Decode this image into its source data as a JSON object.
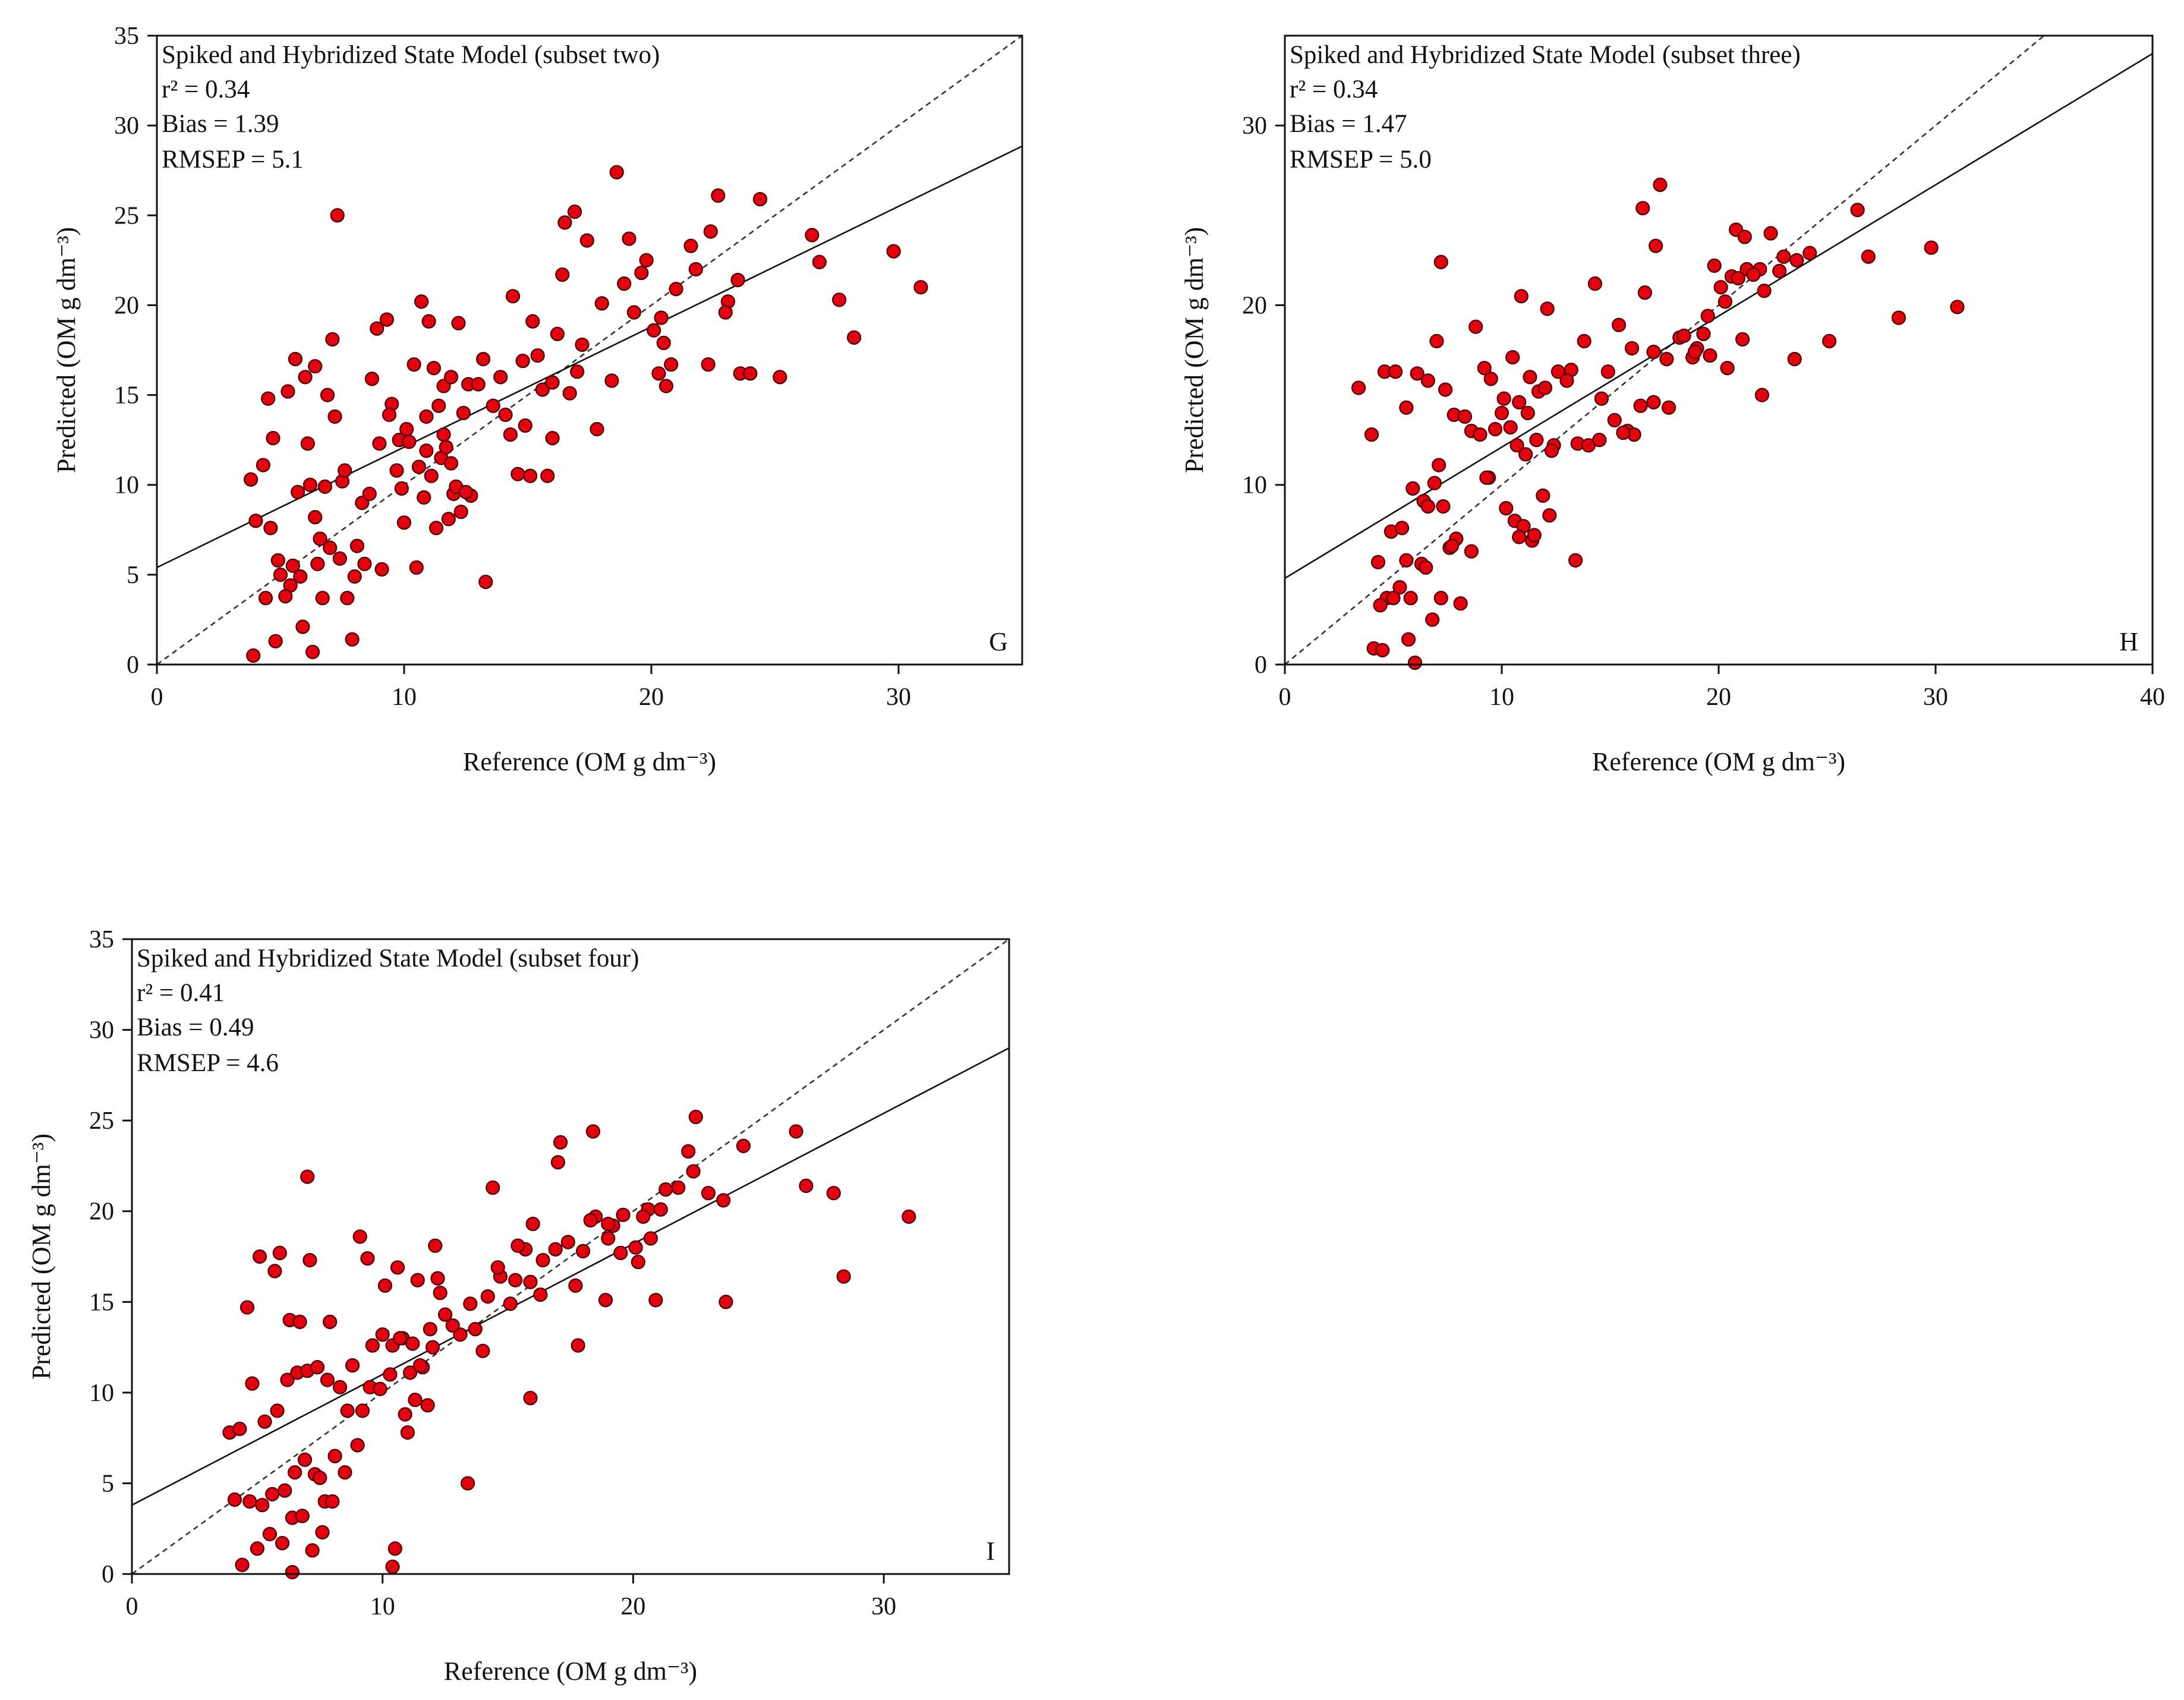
{
  "figure": {
    "colors": {
      "point_fill": "#e3000f",
      "point_stroke": "#4a0000",
      "axes": "#111111",
      "fit_line": "#111111",
      "identity_line": "#333333"
    }
  },
  "chart_data": [
    {
      "type": "scatter",
      "panel": "G",
      "title": "Spiked and Hybridized State Model (subset two)",
      "stats": {
        "r2": "r² = 0.34",
        "bias": "Bias = 1.39",
        "rmsep": "RMSEP = 5.1"
      },
      "xlabel": "Reference (OM g dm⁻³)",
      "ylabel": "Predicted (OM g dm⁻³)",
      "xlim": [
        0,
        35
      ],
      "ylim": [
        0,
        35
      ],
      "xticks": [
        0,
        10,
        20,
        30
      ],
      "yticks": [
        0,
        5,
        10,
        15,
        20,
        25,
        30,
        35
      ],
      "fit_line": {
        "intercept": 5.4,
        "slope": 0.67
      },
      "identity_line": true,
      "x": [
        3.8,
        4.3,
        6.2,
        4.5,
        5.3,
        7.2,
        5.6,
        6.0,
        4.7,
        6.4,
        6.9,
        7.5,
        4.0,
        4.6,
        5.7,
        6.1,
        7.6,
        8.3,
        8.7,
        8.9,
        9.3,
        9.5,
        9.8,
        10.1,
        10.4,
        10.7,
        11.0,
        11.2,
        11.4,
        11.6,
        11.9,
        12.2,
        12.6,
        13.2,
        13.9,
        14.4,
        14.8,
        15.2,
        15.6,
        16.2,
        16.5,
        16.9,
        17.4,
        18.0,
        18.6,
        19.1,
        19.6,
        20.1,
        20.5,
        21.0,
        21.6,
        22.4,
        22.7,
        23.1,
        23.5,
        24.4,
        26.5,
        26.8,
        27.6,
        28.2,
        29.8,
        30.9,
        5.0,
        5.4,
        6.6,
        7.0,
        7.4,
        8.0,
        8.4,
        9.0,
        9.7,
        10.2,
        10.6,
        10.9,
        11.1,
        11.5,
        11.8,
        12.3,
        12.7,
        13.6,
        14.1,
        14.6,
        15.1,
        16.0,
        16.7,
        17.8,
        18.4,
        19.3,
        20.3,
        20.8,
        22.3,
        23.6,
        25.2,
        4.8,
        5.9,
        6.7,
        7.7,
        8.1,
        9.1,
        10.5,
        11.3,
        12.0,
        13.3,
        14.3,
        15.8,
        17.2,
        19.8,
        20.6,
        5.2,
        6.3,
        7.9,
        9.9,
        10.8,
        12.4,
        14.9,
        16.4,
        3.9,
        4.4,
        5.5,
        6.5,
        7.3,
        8.6,
        10.0,
        11.7,
        12.1,
        15.4,
        18.9,
        20.4,
        6.8,
        7.1,
        9.4,
        10.9,
        11.6,
        13.0,
        4.9,
        5.8,
        6.4,
        11.9,
        12.5,
        16.0,
        17.0,
        21.8,
        23.0,
        24.0
      ],
      "y": [
        10.3,
        11.1,
        10.0,
        14.8,
        15.2,
        13.8,
        17.0,
        16.0,
        12.6,
        16.6,
        15.0,
        10.2,
        8.0,
        7.6,
        9.6,
        12.3,
        10.8,
        9.0,
        15.9,
        18.7,
        19.2,
        14.5,
        12.5,
        13.1,
        16.7,
        20.2,
        19.1,
        16.5,
        14.4,
        15.5,
        16.0,
        19.0,
        15.6,
        17.0,
        16.0,
        20.5,
        16.9,
        19.1,
        15.3,
        18.4,
        24.6,
        25.2,
        23.6,
        20.1,
        27.4,
        23.7,
        21.8,
        18.6,
        17.9,
        20.9,
        23.3,
        24.1,
        26.1,
        20.2,
        21.4,
        25.9,
        23.9,
        22.4,
        20.3,
        18.2,
        23.0,
        21.0,
        5.0,
        4.4,
        7.0,
        6.5,
        5.9,
        4.9,
        5.6,
        12.3,
        10.8,
        12.4,
        11.0,
        13.8,
        10.5,
        11.5,
        8.1,
        8.5,
        9.4,
        14.4,
        13.9,
        10.6,
        10.5,
        12.6,
        15.1,
        13.1,
        15.8,
        19.6,
        16.2,
        16.7,
        16.7,
        16.2,
        16.0,
        1.3,
        2.1,
        3.7,
        3.7,
        6.6,
        5.3,
        5.4,
        7.6,
        9.5,
        4.6,
        12.8,
        10.5,
        17.8,
        22.5,
        15.5,
        3.8,
        0.7,
        1.4,
        9.8,
        9.3,
        14.0,
        13.3,
        21.7,
        0.5,
        3.7,
        5.5,
        5.6,
        25.0,
        9.5,
        7.9,
        12.1,
        9.9,
        17.2,
        21.2,
        19.3,
        9.9,
        18.1,
        13.9,
        11.9,
        12.8,
        15.6,
        5.8,
        4.9,
        8.2,
        11.2,
        9.6,
        15.7,
        16.3,
        22.0,
        19.6,
        16.2
      ]
    },
    {
      "type": "scatter",
      "panel": "H",
      "title": "Spiked and Hybridized State Model (subset three)",
      "stats": {
        "r2": "r² = 0.34",
        "bias": "Bias = 1.47",
        "rmsep": "RMSEP = 5.0"
      },
      "xlabel": "Reference (OM g dm⁻³)",
      "ylabel": "Predicted (OM g dm⁻³)",
      "xlim": [
        0,
        40
      ],
      "ylim": [
        0,
        35
      ],
      "xticks": [
        0,
        10,
        20,
        30,
        40
      ],
      "yticks": [
        0,
        10,
        20,
        30
      ],
      "fit_line": {
        "intercept": 4.8,
        "slope": 0.73
      },
      "identity_line": true,
      "x": [
        3.4,
        4.0,
        4.6,
        5.1,
        5.6,
        6.1,
        6.6,
        7.0,
        7.4,
        7.8,
        8.3,
        8.8,
        9.2,
        9.7,
        10.1,
        10.5,
        10.9,
        11.3,
        11.7,
        12.1,
        12.6,
        13.2,
        13.8,
        14.3,
        14.9,
        15.4,
        16.0,
        16.6,
        17.1,
        17.6,
        18.2,
        18.8,
        19.3,
        19.8,
        20.3,
        20.8,
        21.3,
        21.9,
        22.4,
        23.0,
        23.6,
        24.2,
        25.1,
        26.4,
        26.9,
        28.3,
        29.8,
        31.0,
        4.3,
        4.9,
        5.4,
        5.9,
        6.4,
        6.9,
        7.3,
        7.9,
        8.6,
        9.0,
        9.5,
        10.0,
        10.4,
        10.8,
        11.2,
        11.6,
        12.0,
        12.4,
        13.0,
        13.5,
        14.0,
        14.6,
        15.2,
        15.8,
        16.4,
        17.0,
        17.7,
        18.4,
        19.0,
        19.6,
        20.1,
        20.6,
        21.1,
        21.6,
        22.1,
        22.8,
        23.5,
        4.1,
        4.7,
        5.3,
        5.8,
        6.3,
        6.8,
        7.2,
        7.6,
        8.1,
        8.6,
        10.6,
        11.0,
        11.4,
        11.9,
        13.4,
        4.4,
        5.0,
        5.6,
        6.0,
        6.5,
        7.1,
        7.7,
        9.4,
        10.2,
        10.8,
        11.5,
        12.2,
        14.5,
        16.1,
        17.0,
        18.9,
        20.4,
        22.0,
        16.5,
        17.3,
        21.2,
        7.2,
        9.3,
        5.7,
        6.6,
        4.5,
        12.3,
        15.6,
        19.5,
        20.9,
        10.7,
        11.1
      ],
      "y": [
        15.4,
        12.8,
        16.3,
        16.3,
        14.3,
        16.2,
        15.8,
        18.0,
        15.3,
        13.9,
        13.8,
        18.8,
        16.5,
        13.1,
        14.8,
        17.1,
        20.5,
        16.0,
        15.2,
        19.8,
        16.3,
        16.4,
        18.0,
        21.2,
        16.3,
        18.9,
        17.6,
        20.7,
        23.3,
        17.0,
        18.2,
        17.1,
        18.4,
        22.2,
        20.2,
        24.2,
        22.0,
        22.0,
        24.0,
        22.7,
        22.5,
        22.9,
        18.0,
        25.3,
        22.7,
        19.3,
        23.2,
        19.9,
        5.7,
        7.4,
        7.6,
        9.8,
        9.1,
        10.1,
        8.8,
        7.0,
        13.0,
        12.8,
        15.9,
        14.0,
        13.2,
        14.6,
        14.0,
        12.5,
        15.4,
        12.2,
        15.8,
        12.3,
        12.2,
        14.8,
        13.6,
        13.0,
        14.4,
        17.4,
        14.3,
        18.3,
        17.6,
        17.2,
        21.0,
        21.6,
        18.1,
        21.7,
        20.8,
        21.9,
        17.0,
        0.9,
        3.7,
        4.3,
        3.7,
        5.6,
        2.5,
        3.7,
        6.5,
        3.4,
        6.3,
        8.0,
        7.7,
        6.9,
        9.4,
        5.8,
        3.3,
        3.7,
        5.8,
        0.1,
        5.4,
        11.1,
        6.6,
        10.4,
        8.7,
        7.1,
        7.2,
        8.3,
        12.5,
        12.8,
        14.6,
        17.4,
        16.5,
        15.0,
        25.4,
        26.7,
        23.8,
        22.4,
        10.4,
        1.4,
        8.8,
        0.8,
        11.9,
        12.9,
        19.4,
        21.5,
        12.2,
        11.7
      ]
    },
    {
      "type": "scatter",
      "panel": "I",
      "title": "Spiked and Hybridized State Model (subset four)",
      "stats": {
        "r2": "r² = 0.41",
        "bias": "Bias = 0.49",
        "rmsep": "RMSEP = 4.6"
      },
      "xlabel": "Reference (OM g dm⁻³)",
      "ylabel": "Predicted (OM g dm⁻³)",
      "xlim": [
        0,
        35
      ],
      "ylim": [
        0,
        35
      ],
      "xticks": [
        0,
        10,
        20,
        30
      ],
      "yticks": [
        0,
        5,
        10,
        15,
        20,
        25,
        30,
        35
      ],
      "fit_line": {
        "intercept": 3.8,
        "slope": 0.72
      },
      "identity_line": true,
      "x": [
        3.9,
        4.3,
        4.8,
        5.3,
        5.8,
        6.2,
        6.6,
        7.0,
        7.4,
        7.8,
        8.3,
        8.8,
        9.2,
        9.6,
        10.0,
        10.4,
        10.8,
        11.2,
        11.6,
        12.0,
        12.5,
        13.1,
        13.7,
        14.2,
        14.7,
        15.3,
        15.9,
        16.4,
        16.9,
        17.4,
        18.0,
        18.5,
        19.0,
        19.6,
        20.1,
        20.6,
        21.1,
        21.8,
        22.4,
        23.0,
        23.6,
        24.4,
        26.5,
        26.9,
        28.0,
        28.4,
        31.0,
        4.1,
        4.7,
        5.2,
        5.6,
        6.1,
        6.5,
        6.9,
        7.3,
        7.7,
        8.1,
        8.6,
        9.0,
        9.5,
        9.9,
        10.3,
        10.7,
        11.1,
        11.5,
        11.9,
        12.3,
        12.8,
        13.5,
        14.0,
        14.6,
        15.1,
        15.7,
        16.3,
        17.0,
        17.7,
        18.3,
        18.9,
        19.5,
        20.2,
        20.7,
        21.3,
        22.2,
        23.7,
        4.4,
        5.0,
        5.5,
        6.0,
        6.4,
        6.8,
        7.2,
        7.6,
        8.0,
        8.5,
        10.5,
        10.9,
        11.3,
        11.8,
        13.4,
        4.6,
        5.1,
        5.7,
        6.3,
        6.7,
        7.1,
        7.9,
        9.4,
        10.1,
        10.6,
        11.4,
        12.1,
        14.4,
        15.4,
        16.0,
        17.8,
        19.2,
        20.4,
        18.4,
        17.1,
        22.5,
        7.0,
        9.1,
        6.4,
        7.5,
        5.9,
        12.2,
        15.9,
        19.0,
        20.9,
        10.4,
        11.0
      ],
      "y": [
        7.8,
        8.0,
        10.5,
        8.4,
        9.0,
        10.7,
        11.1,
        11.2,
        11.4,
        10.7,
        10.3,
        11.5,
        9.0,
        12.6,
        13.2,
        12.6,
        13.0,
        12.7,
        11.4,
        12.5,
        14.3,
        13.2,
        13.5,
        15.3,
        16.4,
        16.2,
        16.1,
        17.3,
        17.9,
        18.3,
        17.8,
        19.7,
        18.5,
        19.8,
        18.0,
        20.1,
        20.1,
        21.3,
        22.2,
        21.0,
        20.6,
        23.6,
        24.4,
        21.4,
        21.0,
        16.4,
        19.7,
        4.1,
        4.0,
        3.8,
        4.4,
        4.6,
        5.6,
        6.3,
        5.5,
        4.0,
        6.5,
        9.0,
        7.1,
        10.3,
        10.2,
        11.0,
        13.0,
        11.1,
        11.5,
        13.5,
        15.5,
        13.7,
        14.9,
        12.3,
        16.9,
        14.9,
        17.9,
        15.4,
        22.7,
        15.9,
        19.5,
        15.1,
        17.7,
        17.2,
        18.5,
        21.2,
        23.3,
        15.0,
        0.5,
        1.4,
        2.2,
        1.7,
        3.1,
        3.2,
        1.3,
        2.3,
        4.0,
        5.6,
        1.4,
        8.8,
        9.6,
        9.3,
        5.0,
        14.7,
        17.5,
        16.7,
        14.0,
        13.9,
        17.3,
        13.9,
        17.4,
        15.9,
        16.9,
        16.2,
        18.1,
        21.3,
        18.1,
        19.3,
        12.6,
        19.2,
        19.7,
        24.4,
        23.8,
        25.2,
        21.9,
        18.6,
        0.1,
        5.3,
        17.7,
        16.3,
        9.7,
        19.3,
        15.1,
        0.4,
        7.8
      ]
    }
  ]
}
